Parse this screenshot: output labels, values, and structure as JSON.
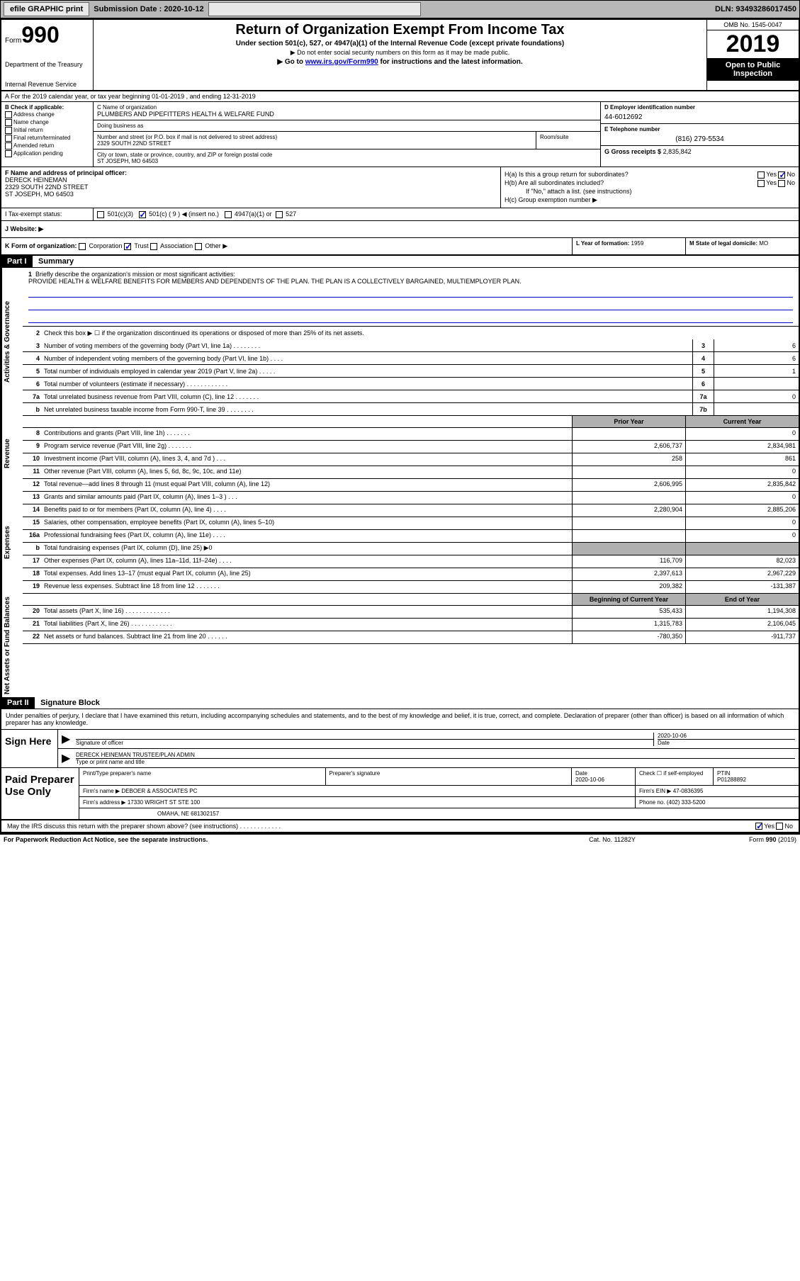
{
  "topbar": {
    "efile": "efile GRAPHIC print",
    "submission": "Submission Date : 2020-10-12",
    "dln": "DLN: 93493286017450"
  },
  "header": {
    "form_label": "Form",
    "form_no": "990",
    "title": "Return of Organization Exempt From Income Tax",
    "subtitle": "Under section 501(c), 527, or 4947(a)(1) of the Internal Revenue Code (except private foundations)",
    "note1": "▶ Do not enter social security numbers on this form as it may be made public.",
    "note2_pre": "▶ Go to ",
    "note2_link": "www.irs.gov/Form990",
    "note2_post": " for instructions and the latest information.",
    "dept1": "Department of the Treasury",
    "dept2": "Internal Revenue Service",
    "omb": "OMB No. 1545-0047",
    "year": "2019",
    "open": "Open to Public Inspection"
  },
  "row_a": "A For the 2019 calendar year, or tax year beginning 01-01-2019   , and ending 12-31-2019",
  "box_b": {
    "label": "B Check if applicable:",
    "items": [
      "Address change",
      "Name change",
      "Initial return",
      "Final return/terminated",
      "Amended return",
      "Application pending"
    ]
  },
  "box_c": {
    "name_label": "C Name of organization",
    "name": "PLUMBERS AND PIPEFITTERS HEALTH & WELFARE FUND",
    "dba_label": "Doing business as",
    "addr_label": "Number and street (or P.O. box if mail is not delivered to street address)",
    "addr": "2329 SOUTH 22ND STREET",
    "room_label": "Room/suite",
    "city_label": "City or town, state or province, country, and ZIP or foreign postal code",
    "city": "ST JOSEPH, MO  64503"
  },
  "box_d": {
    "ein_label": "D Employer identification number",
    "ein": "44-6012692",
    "tel_label": "E Telephone number",
    "tel": "(816) 279-5534",
    "gross_label": "G Gross receipts $",
    "gross": "2,835,842"
  },
  "box_f": {
    "label": "F Name and address of principal officer:",
    "name": "DERECK HEINEMAN",
    "addr": "2329 SOUTH 22ND STREET",
    "city": "ST JOSEPH, MO  64503"
  },
  "box_h": {
    "ha": "H(a)  Is this a group return for subordinates?",
    "ha_yes": "Yes",
    "ha_no": "No",
    "hb": "H(b)  Are all subordinates included?",
    "hb_yes": "Yes",
    "hb_no": "No",
    "hb_note": "If \"No,\" attach a list. (see instructions)",
    "hc": "H(c)  Group exemption number ▶"
  },
  "row_i": {
    "label": "I  Tax-exempt status:",
    "opt1": "501(c)(3)",
    "opt2": "501(c) ( 9 ) ◀ (insert no.)",
    "opt3": "4947(a)(1) or",
    "opt4": "527"
  },
  "row_j": "J  Website: ▶",
  "row_k": {
    "label": "K Form of organization:",
    "opts": [
      "Corporation",
      "Trust",
      "Association",
      "Other ▶"
    ]
  },
  "row_l": {
    "label": "L Year of formation:",
    "val": "1959"
  },
  "row_m": {
    "label": "M State of legal domicile:",
    "val": "MO"
  },
  "part1": {
    "header": "Part I",
    "title": "Summary",
    "q1_label": "1",
    "q1_text": "Briefly describe the organization's mission or most significant activities:",
    "q1_mission": "PROVIDE HEALTH & WELFARE BENEFITS FOR MEMBERS AND DEPENDENTS OF THE PLAN. THE PLAN IS A COLLECTIVELY BARGAINED, MULTIEMPLOYER PLAN.",
    "q2": "Check this box ▶ ☐ if the organization discontinued its operations or disposed of more than 25% of its net assets.",
    "side_ag": "Activities & Governance",
    "side_rev": "Revenue",
    "side_exp": "Expenses",
    "side_net": "Net Assets or Fund Balances",
    "rows_ag": [
      {
        "n": "3",
        "t": "Number of voting members of the governing body (Part VI, line 1a)  .   .   .   .   .   .   .   .",
        "box": "3",
        "v": "6"
      },
      {
        "n": "4",
        "t": "Number of independent voting members of the governing body (Part VI, line 1b)  .   .   .   .",
        "box": "4",
        "v": "6"
      },
      {
        "n": "5",
        "t": "Total number of individuals employed in calendar year 2019 (Part V, line 2a)  .   .   .   .   .",
        "box": "5",
        "v": "1"
      },
      {
        "n": "6",
        "t": "Total number of volunteers (estimate if necessary)   .   .   .   .   .   .   .   .   .   .   .   .",
        "box": "6",
        "v": ""
      },
      {
        "n": "7a",
        "t": "Total unrelated business revenue from Part VIII, column (C), line 12   .   .   .   .   .   .   .",
        "box": "7a",
        "v": "0"
      },
      {
        "n": "b",
        "t": "Net unrelated business taxable income from Form 990-T, line 39   .   .   .   .   .   .   .   .",
        "box": "7b",
        "v": ""
      }
    ],
    "col_prior": "Prior Year",
    "col_current": "Current Year",
    "rows_rev": [
      {
        "n": "8",
        "t": "Contributions and grants (Part VIII, line 1h)   .   .   .   .   .   .   .",
        "p": "",
        "c": "0"
      },
      {
        "n": "9",
        "t": "Program service revenue (Part VIII, line 2g)   .   .   .   .   .   .   .",
        "p": "2,606,737",
        "c": "2,834,981"
      },
      {
        "n": "10",
        "t": "Investment income (Part VIII, column (A), lines 3, 4, and 7d )   .   .   .",
        "p": "258",
        "c": "861"
      },
      {
        "n": "11",
        "t": "Other revenue (Part VIII, column (A), lines 5, 6d, 8c, 9c, 10c, and 11e)",
        "p": "",
        "c": "0"
      },
      {
        "n": "12",
        "t": "Total revenue—add lines 8 through 11 (must equal Part VIII, column (A), line 12)",
        "p": "2,606,995",
        "c": "2,835,842"
      }
    ],
    "rows_exp": [
      {
        "n": "13",
        "t": "Grants and similar amounts paid (Part IX, column (A), lines 1–3 )  .   .   .",
        "p": "",
        "c": "0"
      },
      {
        "n": "14",
        "t": "Benefits paid to or for members (Part IX, column (A), line 4)   .   .   .   .",
        "p": "2,280,904",
        "c": "2,885,206"
      },
      {
        "n": "15",
        "t": "Salaries, other compensation, employee benefits (Part IX, column (A), lines 5–10)",
        "p": "",
        "c": "0"
      },
      {
        "n": "16a",
        "t": "Professional fundraising fees (Part IX, column (A), line 11e)   .   .   .   .",
        "p": "",
        "c": "0"
      },
      {
        "n": "b",
        "t": "Total fundraising expenses (Part IX, column (D), line 25) ▶0",
        "p": "grey",
        "c": "grey"
      },
      {
        "n": "17",
        "t": "Other expenses (Part IX, column (A), lines 11a–11d, 11f–24e)   .   .   .   .",
        "p": "116,709",
        "c": "82,023"
      },
      {
        "n": "18",
        "t": "Total expenses. Add lines 13–17 (must equal Part IX, column (A), line 25)",
        "p": "2,397,613",
        "c": "2,967,229"
      },
      {
        "n": "19",
        "t": "Revenue less expenses. Subtract line 18 from line 12   .   .   .   .   .   .   .",
        "p": "209,382",
        "c": "-131,387"
      }
    ],
    "col_beg": "Beginning of Current Year",
    "col_end": "End of Year",
    "rows_net": [
      {
        "n": "20",
        "t": "Total assets (Part X, line 16)   .   .   .   .   .   .   .   .   .   .   .   .   .",
        "p": "535,433",
        "c": "1,194,308"
      },
      {
        "n": "21",
        "t": "Total liabilities (Part X, line 26)   .   .   .   .   .   .   .   .   .   .   .   .",
        "p": "1,315,783",
        "c": "2,106,045"
      },
      {
        "n": "22",
        "t": "Net assets or fund balances. Subtract line 21 from line 20   .   .   .   .   .   .",
        "p": "-780,350",
        "c": "-911,737"
      }
    ]
  },
  "part2": {
    "header": "Part II",
    "title": "Signature Block",
    "decl": "Under penalties of perjury, I declare that I have examined this return, including accompanying schedules and statements, and to the best of my knowledge and belief, it is true, correct, and complete. Declaration of preparer (other than officer) is based on all information of which preparer has any knowledge.",
    "sign_here": "Sign Here",
    "sig_officer": "Signature of officer",
    "sig_date": "2020-10-06",
    "sig_date_label": "Date",
    "sig_name": "DERECK HEINEMAN  TRUSTEE/PLAN ADMIN",
    "sig_name_label": "Type or print name and title",
    "paid": "Paid Preparer Use Only",
    "prep_name_label": "Print/Type preparer's name",
    "prep_sig_label": "Preparer's signature",
    "prep_date_label": "Date",
    "prep_date": "2020-10-06",
    "prep_check": "Check ☐ if self-employed",
    "ptin_label": "PTIN",
    "ptin": "P01288892",
    "firm_name_label": "Firm's name      ▶",
    "firm_name": "DEBOER & ASSOCIATES PC",
    "firm_ein_label": "Firm's EIN ▶",
    "firm_ein": "47-0836395",
    "firm_addr_label": "Firm's address ▶",
    "firm_addr1": "17330 WRIGHT ST STE 100",
    "firm_addr2": "OMAHA, NE  681302157",
    "firm_phone_label": "Phone no.",
    "firm_phone": "(402) 333-5200",
    "discuss": "May the IRS discuss this return with the preparer shown above? (see instructions)   .   .   .   .   .   .   .   .   .   .   .   .",
    "discuss_yes": "Yes",
    "discuss_no": "No"
  },
  "footer": {
    "left": "For Paperwork Reduction Act Notice, see the separate instructions.",
    "center": "Cat. No. 11282Y",
    "right": "Form 990 (2019)"
  }
}
